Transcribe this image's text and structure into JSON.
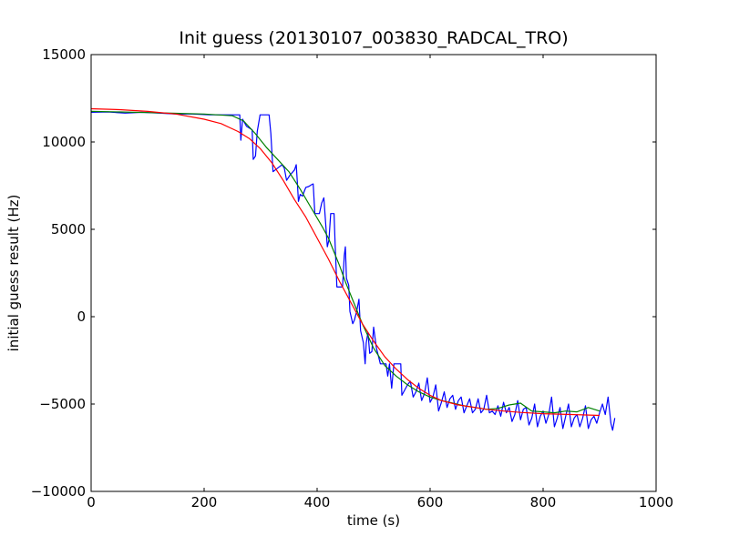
{
  "chart_data": {
    "type": "line",
    "title": "Init guess (20130107_003830_RADCAL_TRO)",
    "xlabel": "time (s)",
    "ylabel": "initial guess result (Hz)",
    "xlim": [
      0,
      1000
    ],
    "ylim": [
      -10000,
      15000
    ],
    "x_ticks": [
      0,
      200,
      400,
      600,
      800,
      1000
    ],
    "y_ticks": [
      -10000,
      -5000,
      0,
      5000,
      10000,
      15000
    ],
    "x_tick_labels": [
      "0",
      "200",
      "400",
      "600",
      "800",
      "1000"
    ],
    "y_tick_labels": [
      "−10000",
      "−5000",
      "0",
      "5000",
      "10000",
      "15000"
    ],
    "grid": false,
    "legend": "none",
    "series": [
      {
        "color": "#0000ff",
        "points": [
          [
            0,
            11700
          ],
          [
            30,
            11720
          ],
          [
            60,
            11650
          ],
          [
            90,
            11700
          ],
          [
            120,
            11650
          ],
          [
            150,
            11600
          ],
          [
            180,
            11600
          ],
          [
            210,
            11550
          ],
          [
            240,
            11550
          ],
          [
            263,
            11550
          ],
          [
            265,
            10100
          ],
          [
            268,
            11300
          ],
          [
            275,
            10900
          ],
          [
            285,
            10700
          ],
          [
            287,
            9000
          ],
          [
            291,
            9200
          ],
          [
            294,
            10600
          ],
          [
            299,
            11550
          ],
          [
            315,
            11550
          ],
          [
            318,
            10500
          ],
          [
            322,
            8300
          ],
          [
            330,
            8500
          ],
          [
            338,
            8700
          ],
          [
            342,
            8500
          ],
          [
            346,
            7800
          ],
          [
            352,
            8100
          ],
          [
            360,
            8400
          ],
          [
            363,
            8700
          ],
          [
            365,
            7700
          ],
          [
            367,
            6600
          ],
          [
            370,
            7000
          ],
          [
            374,
            6900
          ],
          [
            380,
            7400
          ],
          [
            385,
            7450
          ],
          [
            390,
            7550
          ],
          [
            393,
            7600
          ],
          [
            396,
            5900
          ],
          [
            404,
            5900
          ],
          [
            408,
            6500
          ],
          [
            412,
            6800
          ],
          [
            415,
            5400
          ],
          [
            418,
            4000
          ],
          [
            421,
            4400
          ],
          [
            424,
            5900
          ],
          [
            430,
            5900
          ],
          [
            432,
            4100
          ],
          [
            435,
            1700
          ],
          [
            445,
            1700
          ],
          [
            448,
            3500
          ],
          [
            450,
            4000
          ],
          [
            452,
            2200
          ],
          [
            456,
            1800
          ],
          [
            458,
            300
          ],
          [
            463,
            -400
          ],
          [
            466,
            -200
          ],
          [
            470,
            300
          ],
          [
            474,
            1000
          ],
          [
            477,
            -800
          ],
          [
            482,
            -1500
          ],
          [
            485,
            -2700
          ],
          [
            487,
            -1500
          ],
          [
            490,
            -900
          ],
          [
            493,
            -2100
          ],
          [
            497,
            -2000
          ],
          [
            500,
            -600
          ],
          [
            505,
            -1800
          ],
          [
            512,
            -2700
          ],
          [
            522,
            -2700
          ],
          [
            525,
            -3400
          ],
          [
            528,
            -2700
          ],
          [
            532,
            -4100
          ],
          [
            536,
            -2700
          ],
          [
            548,
            -2700
          ],
          [
            550,
            -4500
          ],
          [
            555,
            -4200
          ],
          [
            560,
            -3900
          ],
          [
            565,
            -3700
          ],
          [
            570,
            -4600
          ],
          [
            575,
            -4300
          ],
          [
            580,
            -3800
          ],
          [
            585,
            -4800
          ],
          [
            590,
            -4400
          ],
          [
            595,
            -3500
          ],
          [
            600,
            -4900
          ],
          [
            605,
            -4600
          ],
          [
            610,
            -3900
          ],
          [
            615,
            -5400
          ],
          [
            620,
            -4900
          ],
          [
            625,
            -4300
          ],
          [
            630,
            -5200
          ],
          [
            635,
            -4700
          ],
          [
            640,
            -4500
          ],
          [
            645,
            -5300
          ],
          [
            650,
            -4800
          ],
          [
            655,
            -4600
          ],
          [
            660,
            -5500
          ],
          [
            665,
            -5100
          ],
          [
            670,
            -4700
          ],
          [
            675,
            -5500
          ],
          [
            680,
            -5300
          ],
          [
            685,
            -4700
          ],
          [
            690,
            -5500
          ],
          [
            695,
            -5300
          ],
          [
            700,
            -4500
          ],
          [
            705,
            -5500
          ],
          [
            710,
            -5400
          ],
          [
            715,
            -5600
          ],
          [
            720,
            -5100
          ],
          [
            725,
            -5700
          ],
          [
            730,
            -4900
          ],
          [
            735,
            -5500
          ],
          [
            740,
            -5200
          ],
          [
            745,
            -6000
          ],
          [
            750,
            -5600
          ],
          [
            755,
            -4800
          ],
          [
            760,
            -5900
          ],
          [
            765,
            -5300
          ],
          [
            770,
            -5200
          ],
          [
            775,
            -6200
          ],
          [
            780,
            -5800
          ],
          [
            785,
            -5000
          ],
          [
            790,
            -6300
          ],
          [
            795,
            -5700
          ],
          [
            800,
            -5400
          ],
          [
            805,
            -6100
          ],
          [
            810,
            -5600
          ],
          [
            815,
            -4600
          ],
          [
            820,
            -6300
          ],
          [
            825,
            -5800
          ],
          [
            830,
            -5200
          ],
          [
            835,
            -6400
          ],
          [
            840,
            -5700
          ],
          [
            845,
            -5000
          ],
          [
            850,
            -6300
          ],
          [
            855,
            -5800
          ],
          [
            860,
            -5600
          ],
          [
            865,
            -6300
          ],
          [
            870,
            -5800
          ],
          [
            875,
            -5100
          ],
          [
            880,
            -6400
          ],
          [
            885,
            -5900
          ],
          [
            890,
            -5700
          ],
          [
            895,
            -6100
          ],
          [
            900,
            -5500
          ],
          [
            905,
            -5000
          ],
          [
            910,
            -5600
          ],
          [
            915,
            -4600
          ],
          [
            920,
            -6100
          ],
          [
            923,
            -6500
          ],
          [
            927,
            -5800
          ]
        ]
      },
      {
        "color": "#008000",
        "points": [
          [
            0,
            11750
          ],
          [
            50,
            11720
          ],
          [
            100,
            11680
          ],
          [
            150,
            11640
          ],
          [
            200,
            11600
          ],
          [
            250,
            11500
          ],
          [
            270,
            11200
          ],
          [
            290,
            10500
          ],
          [
            310,
            9700
          ],
          [
            330,
            9000
          ],
          [
            350,
            8300
          ],
          [
            370,
            7300
          ],
          [
            390,
            6200
          ],
          [
            410,
            5100
          ],
          [
            420,
            4500
          ],
          [
            430,
            3700
          ],
          [
            440,
            2900
          ],
          [
            450,
            2000
          ],
          [
            460,
            1200
          ],
          [
            470,
            400
          ],
          [
            480,
            -400
          ],
          [
            490,
            -1100
          ],
          [
            500,
            -1800
          ],
          [
            510,
            -2300
          ],
          [
            520,
            -2800
          ],
          [
            540,
            -3400
          ],
          [
            560,
            -3900
          ],
          [
            580,
            -4300
          ],
          [
            600,
            -4600
          ],
          [
            620,
            -4800
          ],
          [
            640,
            -4950
          ],
          [
            660,
            -5100
          ],
          [
            680,
            -5200
          ],
          [
            700,
            -5300
          ],
          [
            720,
            -5250
          ],
          [
            740,
            -5050
          ],
          [
            760,
            -4950
          ],
          [
            780,
            -5400
          ],
          [
            800,
            -5450
          ],
          [
            820,
            -5500
          ],
          [
            840,
            -5400
          ],
          [
            860,
            -5450
          ],
          [
            880,
            -5200
          ],
          [
            900,
            -5400
          ]
        ]
      },
      {
        "color": "#ff0000",
        "points": [
          [
            0,
            11900
          ],
          [
            50,
            11850
          ],
          [
            100,
            11750
          ],
          [
            150,
            11600
          ],
          [
            200,
            11300
          ],
          [
            230,
            11050
          ],
          [
            260,
            10600
          ],
          [
            280,
            10200
          ],
          [
            300,
            9600
          ],
          [
            320,
            8800
          ],
          [
            340,
            7800
          ],
          [
            360,
            6700
          ],
          [
            380,
            5700
          ],
          [
            400,
            4500
          ],
          [
            420,
            3300
          ],
          [
            440,
            2000
          ],
          [
            460,
            800
          ],
          [
            480,
            -400
          ],
          [
            500,
            -1400
          ],
          [
            520,
            -2300
          ],
          [
            540,
            -3000
          ],
          [
            560,
            -3600
          ],
          [
            580,
            -4100
          ],
          [
            600,
            -4500
          ],
          [
            620,
            -4800
          ],
          [
            650,
            -5050
          ],
          [
            680,
            -5200
          ],
          [
            700,
            -5300
          ],
          [
            730,
            -5400
          ],
          [
            760,
            -5480
          ],
          [
            800,
            -5550
          ],
          [
            850,
            -5600
          ],
          [
            900,
            -5650
          ]
        ]
      }
    ]
  }
}
